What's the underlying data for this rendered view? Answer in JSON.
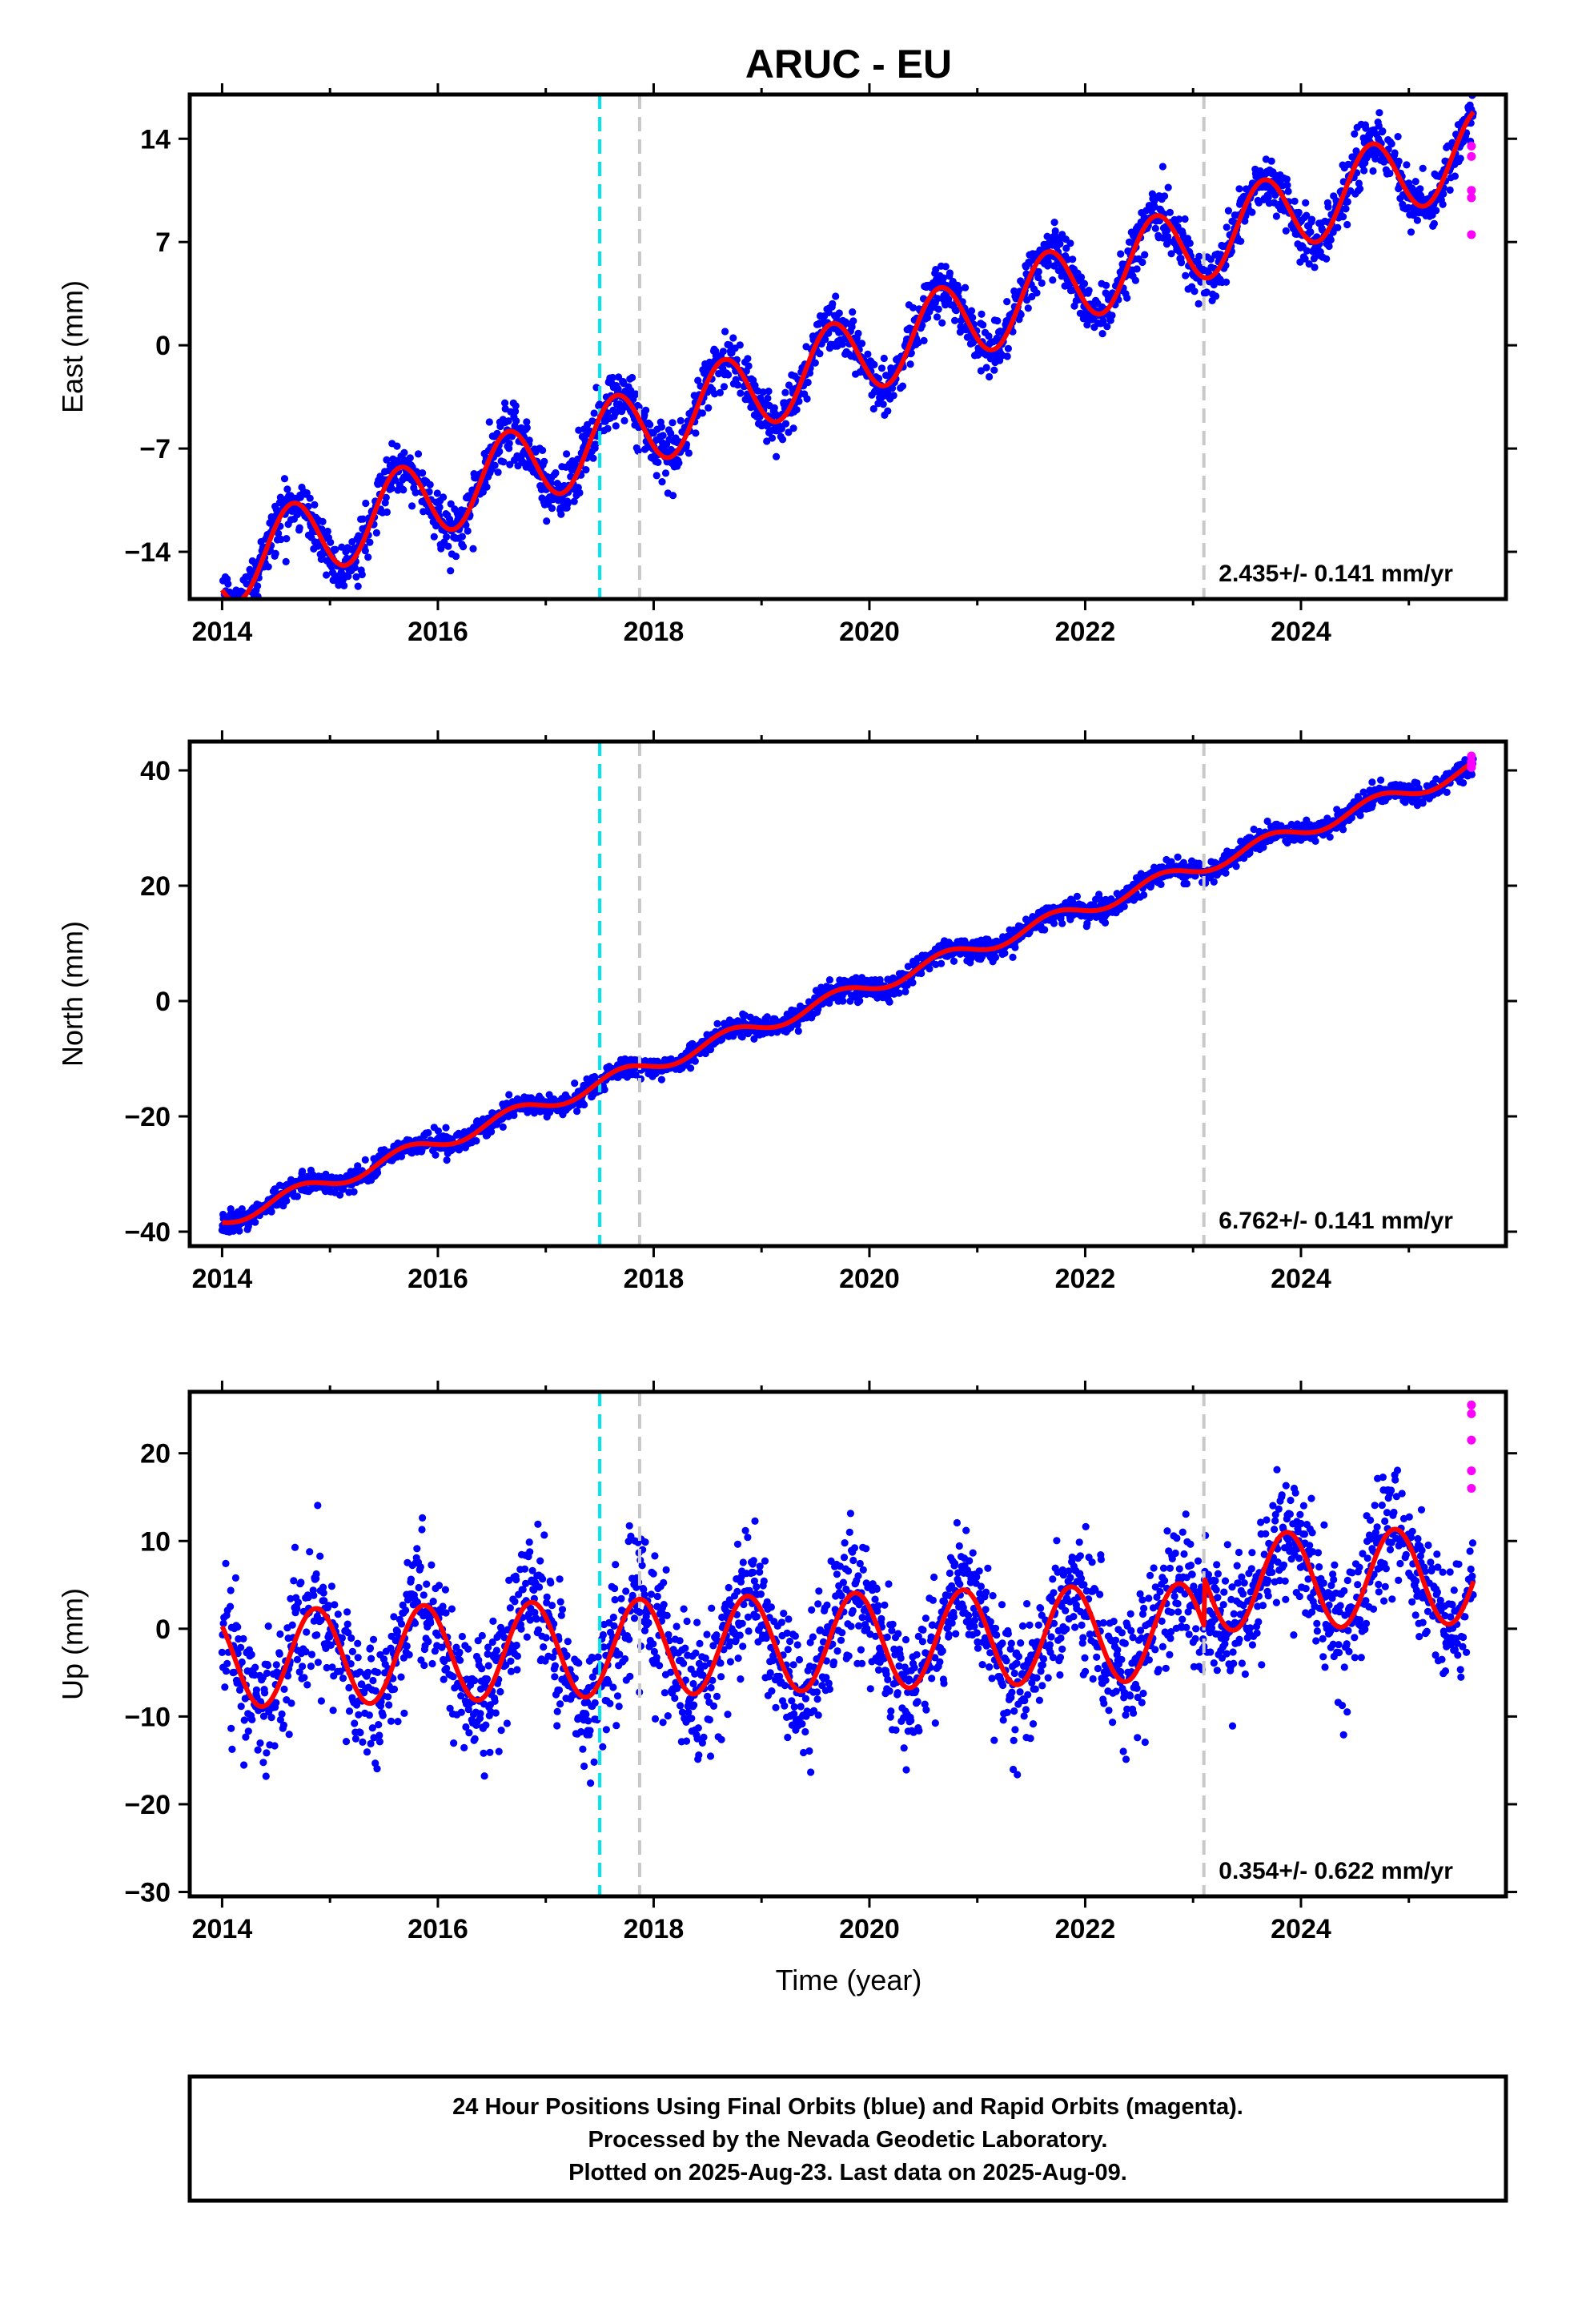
{
  "title": "ARUC - EU",
  "colors": {
    "final_points": "#0000ff",
    "rapid_points": "#ff00ff",
    "model_line": "#ff0000",
    "event_cyan": "#00e5ee",
    "event_gray": "#c8c8c8"
  },
  "footer": {
    "line1": "24 Hour Positions Using Final Orbits (blue) and Rapid Orbits (magenta).",
    "line2": "Processed by the Nevada Geodetic Laboratory.",
    "line3": "Plotted on 2025-Aug-23. Last data on 2025-Aug-09."
  },
  "chart_data": [
    {
      "type": "scatter",
      "name": "east",
      "ylabel": "East (mm)",
      "xlabel": "",
      "xlim": [
        2013.7,
        2025.9
      ],
      "ylim": [
        -17.2,
        17.0
      ],
      "xticks": [
        2014,
        2016,
        2018,
        2020,
        2022,
        2024
      ],
      "yticks": [
        -14,
        -7,
        0,
        7,
        14
      ],
      "ytick_labels": [
        "−14",
        "−7",
        "0",
        "7",
        "14"
      ],
      "rate_text": "2.435+/- 0.141 mm/yr",
      "events": [
        {
          "x": 2017.5,
          "color": "cyan"
        },
        {
          "x": 2017.87,
          "color": "gray"
        },
        {
          "x": 2023.1,
          "color": "gray"
        }
      ],
      "model": {
        "x0": 2014.0,
        "x1": 2025.6,
        "y0": -15.0,
        "rate": 2.435,
        "amp": 2.7,
        "phase": 0.4,
        "offsets": [
          {
            "x": 2023.1,
            "dy": 0.0
          }
        ]
      },
      "scatter_sd": 0.9,
      "rapid_points": [
        [
          2025.58,
          13.5
        ],
        [
          2025.58,
          12.8
        ],
        [
          2025.58,
          10.5
        ],
        [
          2025.58,
          10.0
        ],
        [
          2025.58,
          7.5
        ]
      ]
    },
    {
      "type": "scatter",
      "name": "north",
      "ylabel": "North (mm)",
      "xlabel": "",
      "xlim": [
        2013.7,
        2025.9
      ],
      "ylim": [
        -42.5,
        45.0
      ],
      "xticks": [
        2014,
        2016,
        2018,
        2020,
        2022,
        2024
      ],
      "yticks": [
        -40,
        -20,
        0,
        20,
        40
      ],
      "ytick_labels": [
        "−40",
        "−20",
        "0",
        "20",
        "40"
      ],
      "rate_text": "6.762+/- 0.141 mm/yr",
      "events": [
        {
          "x": 2017.5,
          "color": "cyan"
        },
        {
          "x": 2017.87,
          "color": "gray"
        },
        {
          "x": 2023.1,
          "color": "gray"
        }
      ],
      "model": {
        "x0": 2014.0,
        "x1": 2025.6,
        "y0": -38.0,
        "rate": 6.762,
        "amp": 1.3,
        "phase": 0.45,
        "offsets": []
      },
      "scatter_sd": 0.9,
      "rapid_points": [
        [
          2025.58,
          42.5
        ],
        [
          2025.58,
          41.5
        ],
        [
          2025.58,
          41.0
        ],
        [
          2025.58,
          40.5
        ]
      ]
    },
    {
      "type": "scatter",
      "name": "up",
      "ylabel": "Up (mm)",
      "xlabel": "Time (year)",
      "xlim": [
        2013.7,
        2025.9
      ],
      "ylim": [
        -30.5,
        27.0
      ],
      "xticks": [
        2014,
        2016,
        2018,
        2020,
        2022,
        2024
      ],
      "yticks": [
        -30,
        -20,
        -10,
        0,
        10,
        20
      ],
      "ytick_labels": [
        "−30",
        "−20",
        "−10",
        "0",
        "10",
        "20"
      ],
      "rate_text": "0.354+/- 0.622 mm/yr",
      "events": [
        {
          "x": 2017.5,
          "color": "cyan"
        },
        {
          "x": 2017.87,
          "color": "gray"
        },
        {
          "x": 2023.1,
          "color": "gray"
        }
      ],
      "model": {
        "x0": 2014.0,
        "x1": 2025.6,
        "y0": -3.5,
        "rate": 0.354,
        "amp": 5.5,
        "phase": 0.62,
        "offsets": [
          {
            "x": 2023.1,
            "dy": 5.5
          }
        ]
      },
      "scatter_sd": 3.6,
      "rapid_points": [
        [
          2025.58,
          25.5
        ],
        [
          2025.58,
          24.5
        ],
        [
          2025.58,
          21.5
        ],
        [
          2025.58,
          18.0
        ],
        [
          2025.58,
          16.0
        ]
      ]
    }
  ]
}
